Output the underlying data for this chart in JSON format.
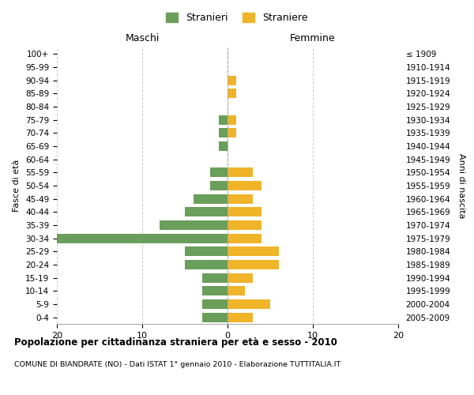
{
  "age_groups": [
    "0-4",
    "5-9",
    "10-14",
    "15-19",
    "20-24",
    "25-29",
    "30-34",
    "35-39",
    "40-44",
    "45-49",
    "50-54",
    "55-59",
    "60-64",
    "65-69",
    "70-74",
    "75-79",
    "80-84",
    "85-89",
    "90-94",
    "95-99",
    "100+"
  ],
  "birth_years": [
    "2005-2009",
    "2000-2004",
    "1995-1999",
    "1990-1994",
    "1985-1989",
    "1980-1984",
    "1975-1979",
    "1970-1974",
    "1965-1969",
    "1960-1964",
    "1955-1959",
    "1950-1954",
    "1945-1949",
    "1940-1944",
    "1935-1939",
    "1930-1934",
    "1925-1929",
    "1920-1924",
    "1915-1919",
    "1910-1914",
    "≤ 1909"
  ],
  "maschi": [
    3,
    3,
    3,
    3,
    5,
    5,
    20,
    8,
    5,
    4,
    2,
    2,
    0,
    1,
    1,
    1,
    0,
    0,
    0,
    0,
    0
  ],
  "femmine": [
    3,
    5,
    2,
    3,
    6,
    6,
    4,
    4,
    4,
    3,
    4,
    3,
    0,
    0,
    1,
    1,
    0,
    1,
    1,
    0,
    0
  ],
  "color_maschi": "#6a9e5b",
  "color_femmine": "#f0b429",
  "title": "Popolazione per cittadinanza straniera per età e sesso - 2010",
  "subtitle": "COMUNE DI BIANDRATE (NO) - Dati ISTAT 1° gennaio 2010 - Elaborazione TUTTITALIA.IT",
  "ylabel_left": "Fasce di età",
  "ylabel_right": "Anni di nascita",
  "label_maschi": "Stranieri",
  "label_femmine": "Straniere",
  "xlim": 20,
  "background_color": "#ffffff",
  "grid_color": "#cccccc",
  "header_maschi": "Maschi",
  "header_femmine": "Femmine"
}
